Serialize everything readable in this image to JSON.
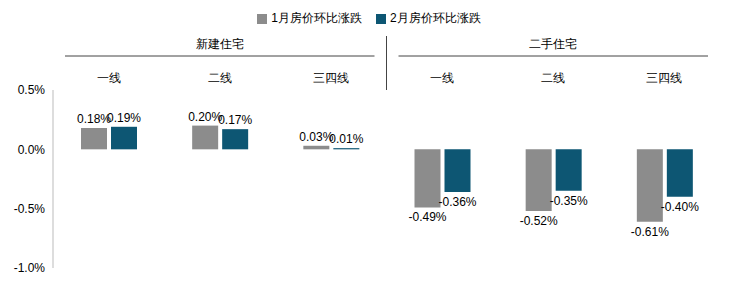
{
  "chart_data": {
    "type": "bar",
    "group_labels": [
      "新建住宅",
      "二手住宅"
    ],
    "categories": [
      "一线",
      "二线",
      "三四线",
      "一线",
      "二线",
      "三四线"
    ],
    "series": [
      {
        "name": "1月房价环比涨跌",
        "color": "#8c8c8c",
        "values": [
          0.18,
          0.2,
          0.03,
          -0.49,
          -0.52,
          -0.61
        ],
        "value_labels": [
          "0.18%",
          "0.20%",
          "0.03%",
          "-0.49%",
          "-0.52%",
          "-0.61%"
        ]
      },
      {
        "name": "2月房价环比涨跌",
        "color": "#0d5673",
        "values": [
          0.19,
          0.17,
          0.01,
          -0.36,
          -0.35,
          -0.4
        ],
        "value_labels": [
          "0.19%",
          "0.17%",
          "0.01%",
          "-0.36%",
          "-0.35%",
          "-0.40%"
        ]
      }
    ],
    "ylim": [
      -1.0,
      0.5
    ],
    "yticks": [
      {
        "value": -1.0,
        "label": "-1.0%"
      },
      {
        "value": -0.5,
        "label": "-0.5%"
      },
      {
        "value": 0,
        "label": "0.0%"
      },
      {
        "value": 0.5,
        "label": "0.5%"
      }
    ],
    "grid": false,
    "legend": "top",
    "data_labels": true
  }
}
